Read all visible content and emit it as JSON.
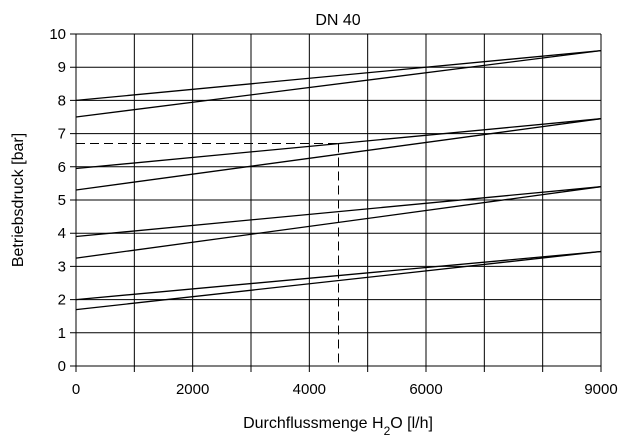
{
  "chart_data": {
    "type": "line",
    "title": "DN 40",
    "ylabel": "Betriebsdruck [bar]",
    "xlabel": {
      "pre": "Durchflussmenge H",
      "sub": "2",
      "post": "O [l/h]"
    },
    "xlim": [
      0,
      9000
    ],
    "ylim": [
      0,
      10
    ],
    "x_grid": [
      0,
      1000,
      2000,
      3000,
      4000,
      5000,
      6000,
      7000,
      8000,
      9000
    ],
    "x_ticks": [
      0,
      2000,
      4000,
      6000,
      9000
    ],
    "y_ticks": [
      0,
      1,
      2,
      3,
      4,
      5,
      6,
      7,
      8,
      9,
      10
    ],
    "grid": true,
    "legend": "none",
    "line_color": "#000000",
    "series": [
      {
        "x": [
          0,
          9000
        ],
        "y": [
          8.0,
          9.5
        ]
      },
      {
        "x": [
          0,
          9000
        ],
        "y": [
          7.5,
          9.5
        ]
      },
      {
        "x": [
          0,
          9000
        ],
        "y": [
          5.95,
          7.45
        ]
      },
      {
        "x": [
          0,
          9000
        ],
        "y": [
          5.3,
          7.45
        ]
      },
      {
        "x": [
          0,
          9000
        ],
        "y": [
          3.9,
          5.4
        ]
      },
      {
        "x": [
          0,
          9000
        ],
        "y": [
          3.25,
          5.4
        ]
      },
      {
        "x": [
          0,
          9000
        ],
        "y": [
          2.0,
          3.45
        ]
      },
      {
        "x": [
          0,
          9000
        ],
        "y": [
          1.7,
          3.45
        ]
      }
    ],
    "reference": {
      "x": 4500,
      "y": 6.7,
      "style": "dashed"
    }
  }
}
